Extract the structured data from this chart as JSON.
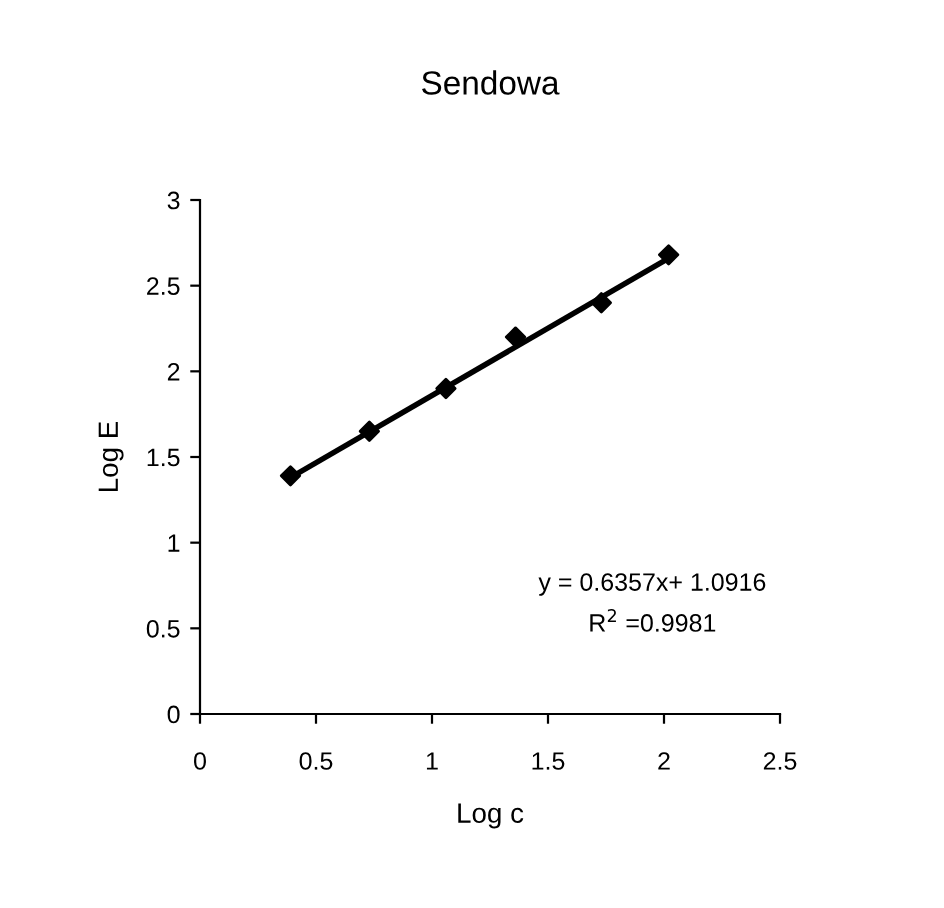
{
  "chart_data": {
    "type": "scatter",
    "title": "Sendowa",
    "xlabel": "Log c",
    "ylabel": "Log E",
    "series": [
      {
        "color": "#000000",
        "marker": "diamond",
        "x": [
          0.39,
          0.73,
          1.06,
          1.36,
          1.73,
          2.02
        ],
        "values": [
          1.39,
          1.65,
          1.9,
          2.2,
          2.4,
          2.68
        ]
      },
      {
        "type": "line",
        "color": "#000000",
        "marker": "none",
        "x": [
          0.39,
          2.02
        ],
        "values": [
          1.38,
          2.66
        ]
      }
    ],
    "annotations": [
      "y = 0.6357x+ 1.0916",
      "R$^{2}$ =0.9981"
    ],
    "xlim": [
      0,
      2.5
    ],
    "xticks": [
      0,
      0.5,
      1,
      1.5,
      2,
      2.5
    ],
    "ylim": [
      0,
      3
    ],
    "yticks": [
      0,
      0.5,
      1,
      1.5,
      2,
      2.5,
      3
    ],
    "grid": false,
    "legend": false
  }
}
